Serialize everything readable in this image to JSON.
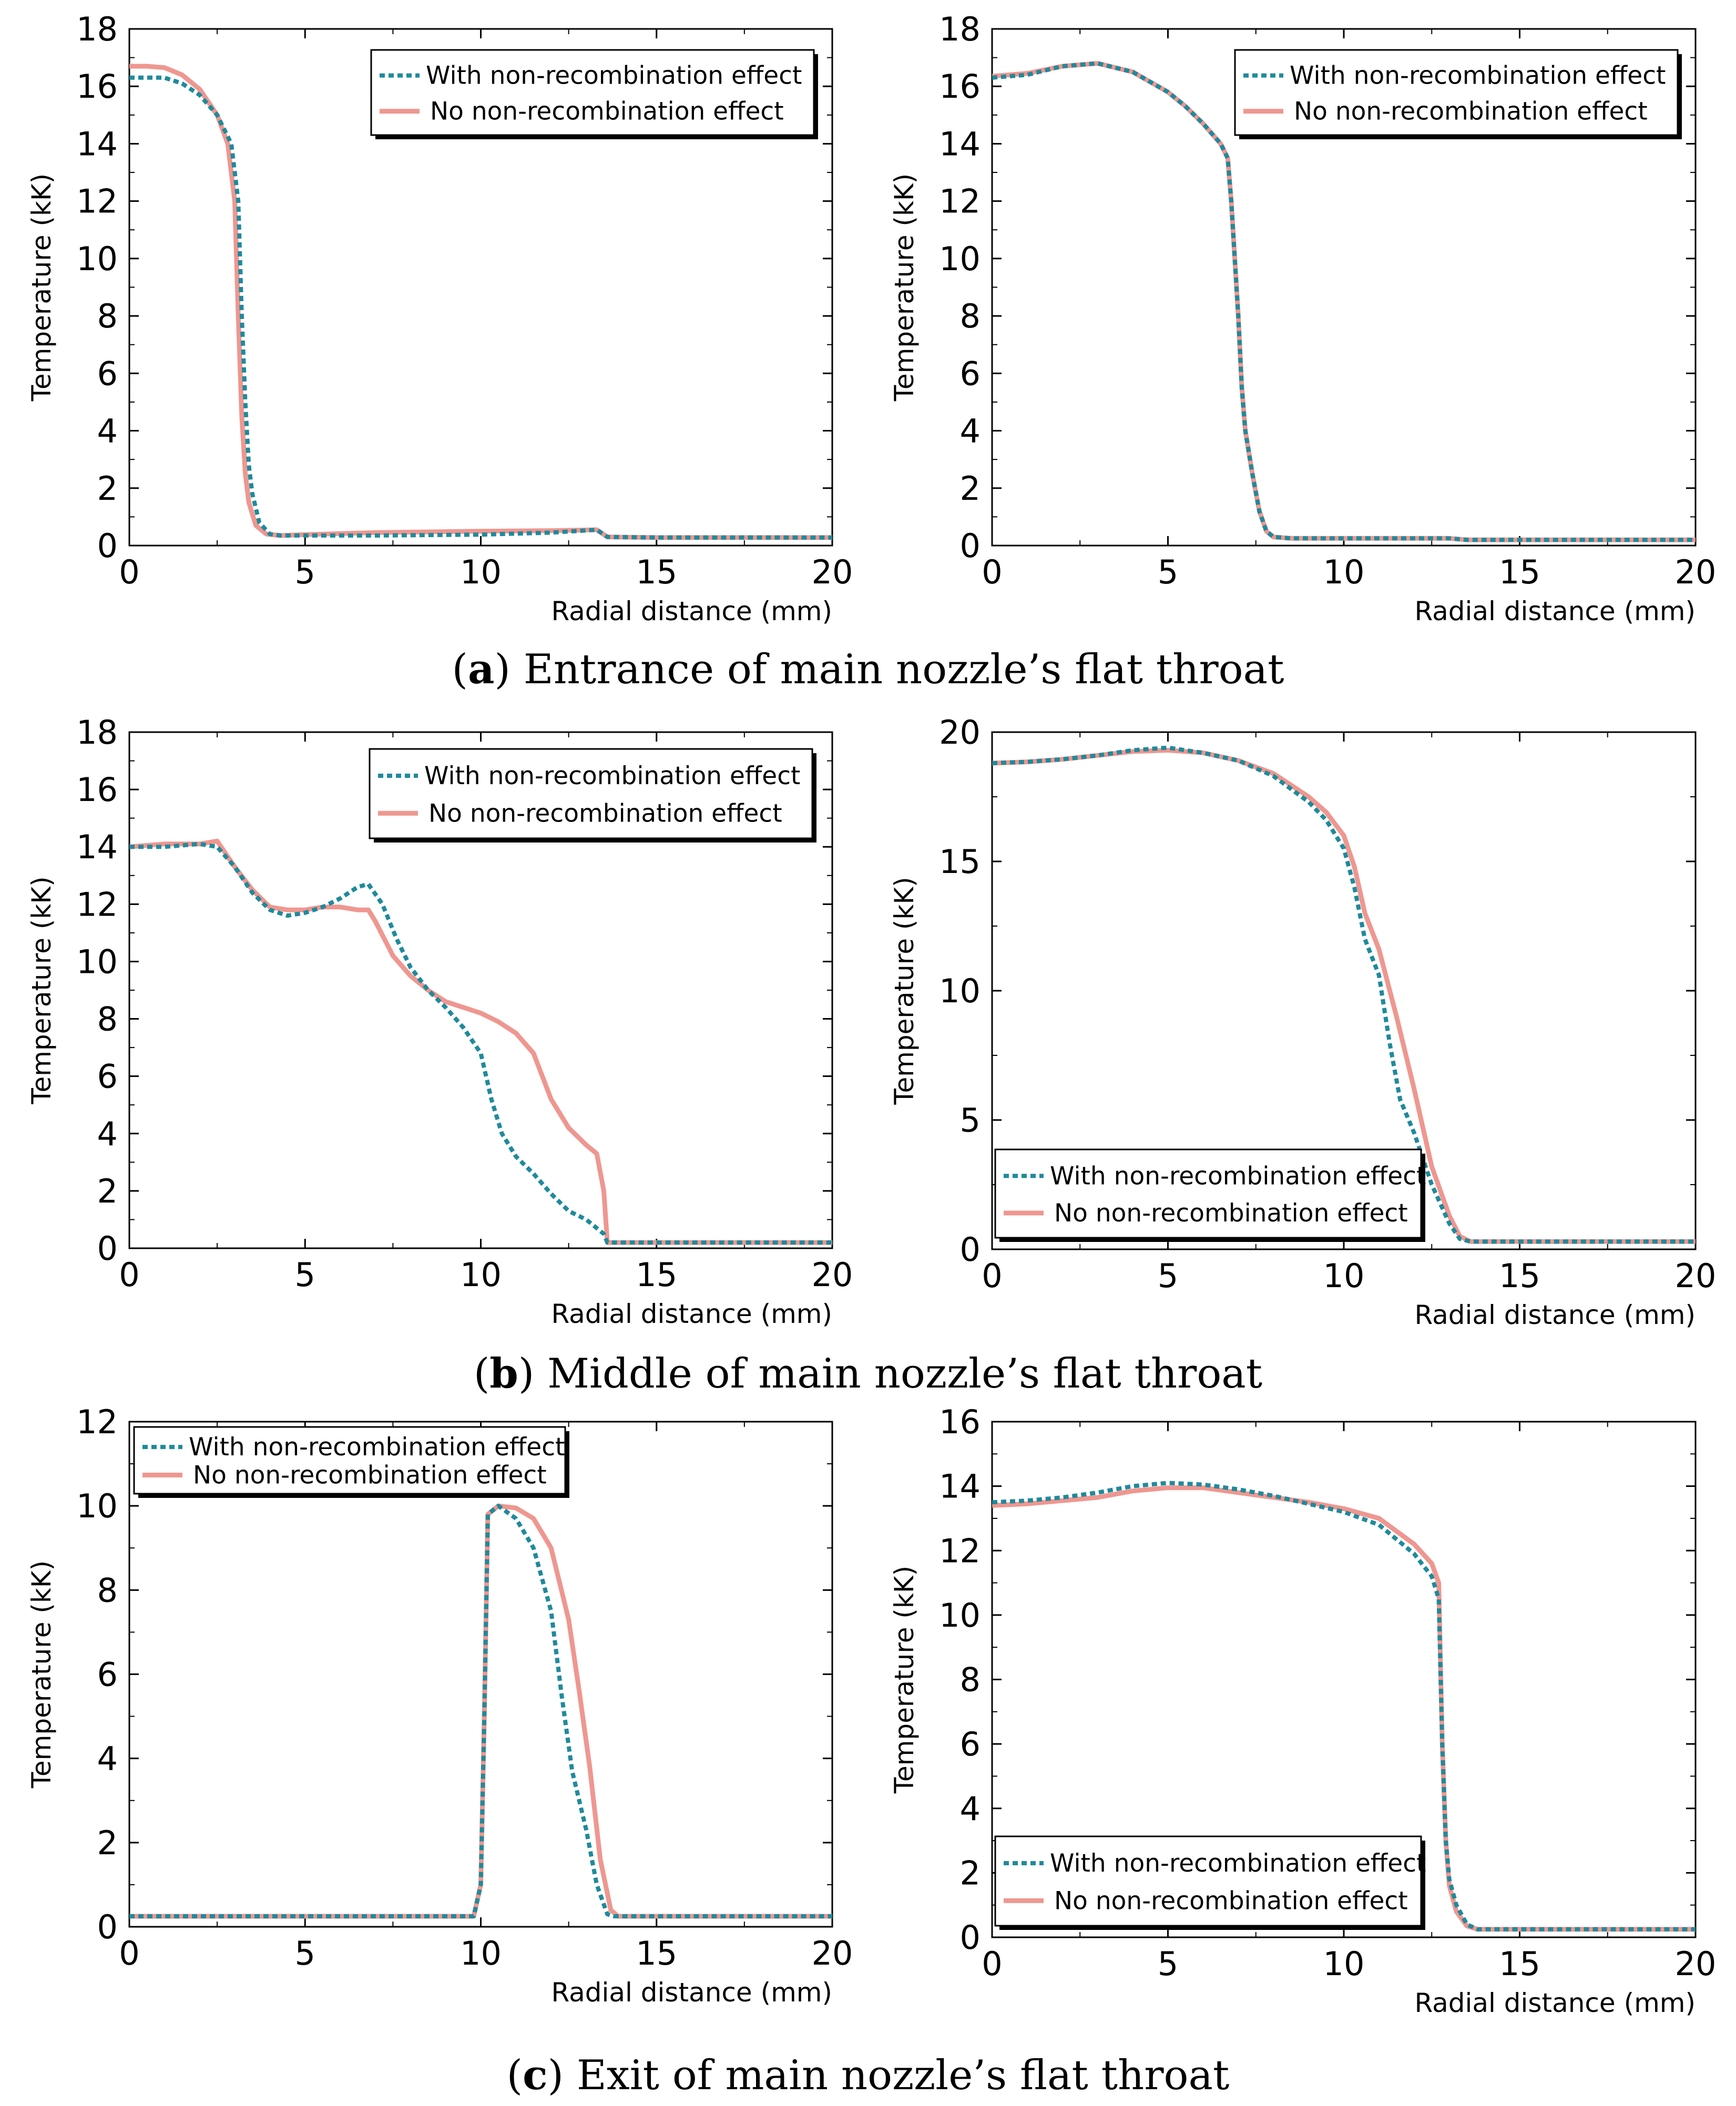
{
  "legend": {
    "with_label": "With non-recombination effect",
    "no_label": "No non-recombination effect"
  },
  "colors": {
    "with": "#1f8a9c",
    "no": "#ee9790",
    "axis": "#000000"
  },
  "captions": [
    {
      "letter": "a",
      "text": "Entrance of main nozzle’s flat throat"
    },
    {
      "letter": "b",
      "text": "Middle of main nozzle’s flat throat"
    },
    {
      "letter": "c",
      "text": "Exit of main nozzle’s flat throat"
    }
  ],
  "chart_data": [
    {
      "id": "a-left",
      "type": "line",
      "xlabel": "Radial distance (mm)",
      "ylabel": "Temperature (kK)",
      "xlim": [
        0,
        20
      ],
      "ylim": [
        0,
        18
      ],
      "xticks": [
        "0",
        "5",
        "10",
        "15",
        "20"
      ],
      "yticks": [
        "0",
        "2",
        "4",
        "6",
        "8",
        "10",
        "12",
        "14",
        "16",
        "18"
      ],
      "legend_position": "top-right",
      "series": [
        {
          "name": "With non-recombination effect",
          "key": "with",
          "x": [
            0,
            0.5,
            1,
            1.5,
            2,
            2.5,
            2.9,
            3.1,
            3.2,
            3.3,
            3.4,
            3.5,
            3.7,
            4.0,
            4.3,
            5,
            7,
            10,
            12,
            13.3,
            13.6,
            15,
            20
          ],
          "y": [
            16.3,
            16.3,
            16.3,
            16.1,
            15.7,
            15.0,
            14.0,
            12.0,
            8.0,
            5.0,
            2.8,
            1.8,
            0.8,
            0.4,
            0.35,
            0.35,
            0.35,
            0.38,
            0.45,
            0.55,
            0.3,
            0.28,
            0.28
          ]
        },
        {
          "name": "No non-recombination effect",
          "key": "no",
          "x": [
            0,
            0.5,
            1,
            1.5,
            2,
            2.5,
            2.8,
            3.0,
            3.1,
            3.2,
            3.3,
            3.4,
            3.6,
            3.9,
            4.3,
            5,
            7,
            10,
            12,
            13.3,
            13.6,
            15,
            20
          ],
          "y": [
            16.7,
            16.7,
            16.65,
            16.4,
            15.9,
            15.0,
            14.0,
            12.0,
            8.0,
            4.5,
            2.5,
            1.5,
            0.7,
            0.4,
            0.35,
            0.38,
            0.45,
            0.5,
            0.52,
            0.55,
            0.3,
            0.28,
            0.28
          ]
        }
      ]
    },
    {
      "id": "a-right",
      "type": "line",
      "xlabel": "Radial distance (mm)",
      "ylabel": "Temperature (kK)",
      "xlim": [
        0,
        20
      ],
      "ylim": [
        0,
        18
      ],
      "xticks": [
        "0",
        "5",
        "10",
        "15",
        "20"
      ],
      "yticks": [
        "0",
        "2",
        "4",
        "6",
        "8",
        "10",
        "12",
        "14",
        "16",
        "18"
      ],
      "legend_position": "top-right",
      "series": [
        {
          "name": "With non-recombination effect",
          "key": "with",
          "x": [
            0,
            1,
            2,
            3,
            4,
            5,
            5.5,
            6,
            6.5,
            6.7,
            6.8,
            6.9,
            7.0,
            7.1,
            7.2,
            7.4,
            7.6,
            7.8,
            8.0,
            8.5,
            10,
            13,
            13.5,
            20
          ],
          "y": [
            16.3,
            16.4,
            16.7,
            16.8,
            16.5,
            15.8,
            15.3,
            14.7,
            14.0,
            13.5,
            12.0,
            10.0,
            8.0,
            5.5,
            4.0,
            2.5,
            1.2,
            0.5,
            0.3,
            0.25,
            0.25,
            0.25,
            0.2,
            0.2
          ]
        },
        {
          "name": "No non-recombination effect",
          "key": "no",
          "x": [
            0,
            1,
            2,
            3,
            4,
            5,
            5.5,
            6,
            6.5,
            6.7,
            6.8,
            6.9,
            7.0,
            7.1,
            7.2,
            7.4,
            7.6,
            7.8,
            8.0,
            8.5,
            10,
            13,
            13.5,
            20
          ],
          "y": [
            16.35,
            16.45,
            16.7,
            16.8,
            16.5,
            15.8,
            15.3,
            14.7,
            14.0,
            13.5,
            12.0,
            10.0,
            8.0,
            5.5,
            4.0,
            2.5,
            1.2,
            0.5,
            0.3,
            0.25,
            0.25,
            0.25,
            0.2,
            0.2
          ]
        }
      ]
    },
    {
      "id": "b-left",
      "type": "line",
      "xlabel": "Radial distance (mm)",
      "ylabel": "Temperature (kK)",
      "xlim": [
        0,
        20
      ],
      "ylim": [
        0,
        18
      ],
      "xticks": [
        "0",
        "5",
        "10",
        "15",
        "20"
      ],
      "yticks": [
        "0",
        "2",
        "4",
        "6",
        "8",
        "10",
        "12",
        "14",
        "16",
        "18"
      ],
      "legend_position": "top-right",
      "series": [
        {
          "name": "With non-recombination effect",
          "key": "with",
          "x": [
            0,
            1,
            2,
            2.5,
            3,
            3.5,
            4,
            4.5,
            5,
            5.5,
            6,
            6.5,
            6.8,
            7.2,
            7.6,
            8,
            8.5,
            9,
            9.5,
            10,
            10.3,
            10.6,
            11,
            11.5,
            12,
            12.5,
            13,
            13.5,
            13.6,
            15,
            20
          ],
          "y": [
            14.0,
            14.0,
            14.1,
            14.0,
            13.3,
            12.4,
            11.8,
            11.6,
            11.7,
            11.9,
            12.2,
            12.6,
            12.7,
            12.0,
            10.8,
            9.8,
            9.0,
            8.4,
            7.7,
            6.8,
            5.2,
            4.0,
            3.2,
            2.6,
            1.9,
            1.3,
            1.0,
            0.5,
            0.2,
            0.2,
            0.2
          ]
        },
        {
          "name": "No non-recombination effect",
          "key": "no",
          "x": [
            0,
            1,
            2,
            2.5,
            3,
            3.5,
            4,
            4.5,
            5,
            5.5,
            6,
            6.5,
            6.8,
            7,
            7.5,
            8,
            8.5,
            9,
            9.5,
            10,
            10.5,
            11,
            11.5,
            12,
            12.5,
            13,
            13.3,
            13.5,
            13.6,
            15,
            20
          ],
          "y": [
            14.0,
            14.1,
            14.1,
            14.2,
            13.3,
            12.5,
            11.9,
            11.8,
            11.8,
            11.9,
            11.9,
            11.8,
            11.8,
            11.4,
            10.2,
            9.5,
            9.0,
            8.6,
            8.4,
            8.2,
            7.9,
            7.5,
            6.8,
            5.2,
            4.2,
            3.6,
            3.3,
            2.0,
            0.2,
            0.2,
            0.2
          ]
        }
      ]
    },
    {
      "id": "b-right",
      "type": "line",
      "xlabel": "Radial distance (mm)",
      "ylabel": "Temperature (kK)",
      "xlim": [
        0,
        20
      ],
      "ylim": [
        0,
        20
      ],
      "xticks": [
        "0",
        "5",
        "10",
        "15",
        "20"
      ],
      "yticks": [
        "0",
        "5",
        "10",
        "15",
        "20"
      ],
      "legend_position": "bottom-left",
      "series": [
        {
          "name": "With non-recombination effect",
          "key": "with",
          "x": [
            0,
            1,
            2,
            3,
            4,
            5,
            6,
            7,
            8,
            9,
            9.5,
            10,
            10.3,
            10.6,
            11,
            11.3,
            11.6,
            12,
            12.5,
            13,
            13.3,
            13.6,
            15,
            20
          ],
          "y": [
            18.8,
            18.85,
            18.95,
            19.1,
            19.3,
            19.4,
            19.2,
            18.9,
            18.3,
            17.3,
            16.6,
            15.5,
            14.0,
            12.0,
            10.6,
            8.0,
            5.8,
            4.5,
            2.5,
            1.0,
            0.4,
            0.3,
            0.3,
            0.3
          ]
        },
        {
          "name": "No non-recombination effect",
          "key": "no",
          "x": [
            0,
            1,
            2,
            3,
            4,
            5,
            6,
            7,
            8,
            9,
            9.5,
            10,
            10.3,
            10.6,
            11,
            11.5,
            12,
            12.5,
            13,
            13.3,
            13.6,
            15,
            20
          ],
          "y": [
            18.8,
            18.85,
            18.95,
            19.1,
            19.25,
            19.3,
            19.2,
            18.9,
            18.4,
            17.5,
            16.9,
            16.0,
            14.8,
            13.0,
            11.6,
            9.0,
            6.2,
            3.2,
            1.3,
            0.5,
            0.3,
            0.3,
            0.3
          ]
        }
      ]
    },
    {
      "id": "c-left",
      "type": "line",
      "xlabel": "Radial distance (mm)",
      "ylabel": "Temperature (kK)",
      "xlim": [
        0,
        20
      ],
      "ylim": [
        0,
        12
      ],
      "xticks": [
        "0",
        "5",
        "10",
        "15",
        "20"
      ],
      "yticks": [
        "0",
        "2",
        "4",
        "6",
        "8",
        "10",
        "12"
      ],
      "legend_position": "top-left",
      "series": [
        {
          "name": "With non-recombination effect",
          "key": "with",
          "x": [
            0,
            9.8,
            10.0,
            10.1,
            10.2,
            10.5,
            11.0,
            11.5,
            12.0,
            12.3,
            12.6,
            13.0,
            13.3,
            13.6,
            13.8,
            20
          ],
          "y": [
            0.25,
            0.25,
            1.0,
            5.0,
            9.8,
            10.0,
            9.7,
            9.0,
            7.5,
            5.5,
            3.7,
            2.3,
            1.0,
            0.3,
            0.25,
            0.25
          ]
        },
        {
          "name": "No non-recombination effect",
          "key": "no",
          "x": [
            0,
            9.8,
            10.0,
            10.1,
            10.2,
            10.5,
            11.0,
            11.5,
            12.0,
            12.5,
            12.8,
            13.1,
            13.4,
            13.7,
            13.9,
            20
          ],
          "y": [
            0.25,
            0.25,
            1.0,
            5.0,
            9.8,
            10.0,
            9.95,
            9.7,
            9.0,
            7.3,
            5.6,
            3.8,
            1.6,
            0.4,
            0.25,
            0.25
          ]
        }
      ]
    },
    {
      "id": "c-right",
      "type": "line",
      "xlabel": "Radial distance (mm)",
      "ylabel": "Temperature (kK)",
      "xlim": [
        0,
        20
      ],
      "ylim": [
        0,
        16
      ],
      "xticks": [
        "0",
        "5",
        "10",
        "15",
        "20"
      ],
      "yticks": [
        "0",
        "2",
        "4",
        "6",
        "8",
        "10",
        "12",
        "14",
        "16"
      ],
      "legend_position": "bottom-left",
      "series": [
        {
          "name": "With non-recombination effect",
          "key": "with",
          "x": [
            0,
            1,
            2,
            3,
            4,
            5,
            6,
            7,
            8,
            9,
            10,
            11,
            12,
            12.5,
            12.7,
            12.8,
            12.9,
            13.0,
            13.2,
            13.5,
            13.8,
            20
          ],
          "y": [
            13.5,
            13.55,
            13.65,
            13.8,
            14.0,
            14.1,
            14.05,
            13.9,
            13.7,
            13.45,
            13.2,
            12.8,
            11.9,
            11.2,
            10.5,
            6.0,
            3.0,
            1.8,
            1.0,
            0.4,
            0.25,
            0.25
          ]
        },
        {
          "name": "No non-recombination effect",
          "key": "no",
          "x": [
            0,
            1,
            2,
            3,
            4,
            5,
            6,
            7,
            8,
            9,
            10,
            11,
            12,
            12.5,
            12.7,
            12.8,
            12.9,
            13.0,
            13.2,
            13.5,
            13.8,
            20
          ],
          "y": [
            13.4,
            13.45,
            13.55,
            13.65,
            13.85,
            13.95,
            13.95,
            13.8,
            13.65,
            13.5,
            13.3,
            13.0,
            12.2,
            11.6,
            11.0,
            6.0,
            3.0,
            1.6,
            0.8,
            0.35,
            0.25,
            0.25
          ]
        }
      ]
    }
  ]
}
